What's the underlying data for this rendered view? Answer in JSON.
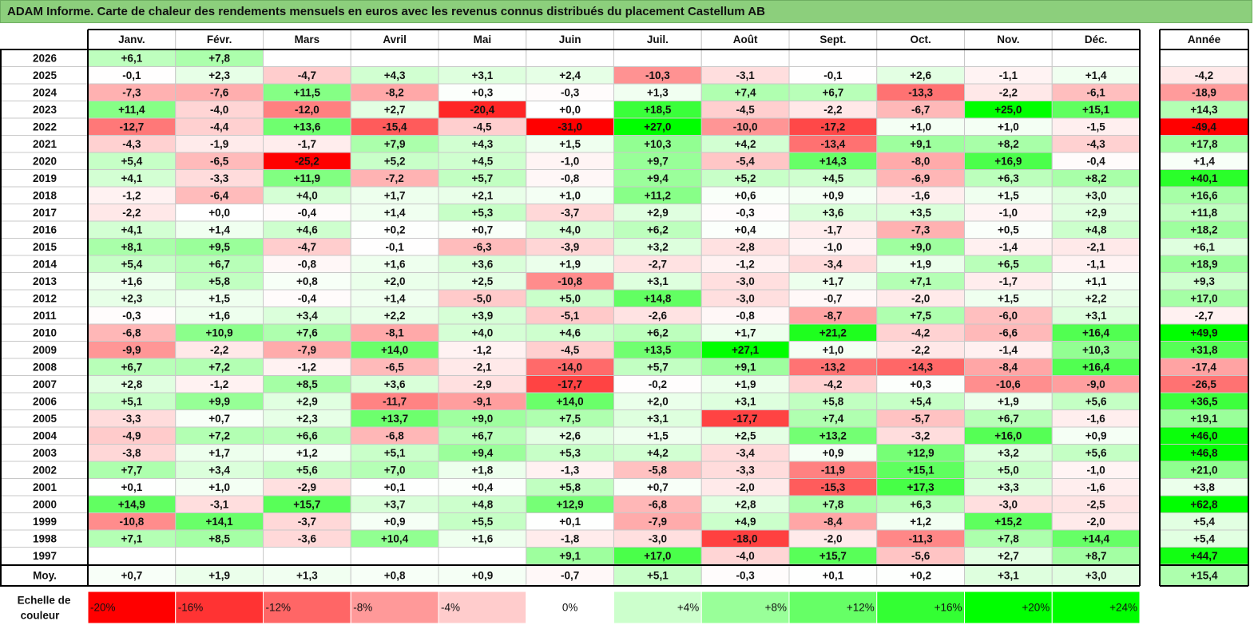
{
  "title": "ADAM Informe. Carte de chaleur des rendements mensuels en euros avec les revenus connus distribués du placement Castellum AB",
  "chart_data": {
    "type": "heatmap",
    "columns": [
      "Janv.",
      "Févr.",
      "Mars",
      "Avril",
      "Mai",
      "Juin",
      "Juil.",
      "Août",
      "Sept.",
      "Oct.",
      "Nov.",
      "Déc."
    ],
    "year_column_label": "Année",
    "average_row_label": "Moy.",
    "rows": [
      {
        "year": "2026",
        "months": [
          "+6,1",
          "+7,8",
          "",
          "",
          "",
          "",
          "",
          "",
          "",
          "",
          "",
          ""
        ],
        "annual": ""
      },
      {
        "year": "2025",
        "months": [
          "-0,1",
          "+2,3",
          "-4,7",
          "+4,3",
          "+3,1",
          "+2,4",
          "-10,3",
          "-3,1",
          "-0,1",
          "+2,6",
          "-1,1",
          "+1,4"
        ],
        "annual": "-4,2"
      },
      {
        "year": "2024",
        "months": [
          "-7,3",
          "-7,6",
          "+11,5",
          "-8,2",
          "+0,3",
          "-0,3",
          "+1,3",
          "+7,4",
          "+6,7",
          "-13,3",
          "-2,2",
          "-6,1"
        ],
        "annual": "-18,9"
      },
      {
        "year": "2023",
        "months": [
          "+11,4",
          "-4,0",
          "-12,0",
          "+2,7",
          "-20,4",
          "+0,0",
          "+18,5",
          "-4,5",
          "-2,2",
          "-6,7",
          "+25,0",
          "+15,1"
        ],
        "annual": "+14,3"
      },
      {
        "year": "2022",
        "months": [
          "-12,7",
          "-4,4",
          "+13,6",
          "-15,4",
          "-4,5",
          "-31,0",
          "+27,0",
          "-10,0",
          "-17,2",
          "+1,0",
          "+1,0",
          "-1,5"
        ],
        "annual": "-49,4"
      },
      {
        "year": "2021",
        "months": [
          "-4,3",
          "-1,9",
          "-1,7",
          "+7,9",
          "+4,3",
          "+1,5",
          "+10,3",
          "+4,2",
          "-13,4",
          "+9,1",
          "+8,2",
          "-4,3"
        ],
        "annual": "+17,8"
      },
      {
        "year": "2020",
        "months": [
          "+5,4",
          "-6,5",
          "-25,2",
          "+5,2",
          "+4,5",
          "-1,0",
          "+9,7",
          "-5,4",
          "+14,3",
          "-8,0",
          "+16,9",
          "-0,4"
        ],
        "annual": "+1,4"
      },
      {
        "year": "2019",
        "months": [
          "+4,1",
          "-3,3",
          "+11,9",
          "-7,2",
          "+5,7",
          "-0,8",
          "+9,4",
          "+5,2",
          "+4,5",
          "-6,9",
          "+6,3",
          "+8,2"
        ],
        "annual": "+40,1"
      },
      {
        "year": "2018",
        "months": [
          "-1,2",
          "-6,4",
          "+4,0",
          "+1,7",
          "+2,1",
          "+1,0",
          "+11,2",
          "+0,6",
          "+0,9",
          "-1,6",
          "+1,5",
          "+3,0"
        ],
        "annual": "+16,6"
      },
      {
        "year": "2017",
        "months": [
          "-2,2",
          "+0,0",
          "-0,4",
          "+1,4",
          "+5,3",
          "-3,7",
          "+2,9",
          "-0,3",
          "+3,6",
          "+3,5",
          "-1,0",
          "+2,9"
        ],
        "annual": "+11,8"
      },
      {
        "year": "2016",
        "months": [
          "+4,1",
          "+1,4",
          "+4,6",
          "+0,2",
          "+0,7",
          "+4,0",
          "+6,2",
          "+0,4",
          "-1,7",
          "-7,3",
          "+0,5",
          "+4,8"
        ],
        "annual": "+18,2"
      },
      {
        "year": "2015",
        "months": [
          "+8,1",
          "+9,5",
          "-4,7",
          "-0,1",
          "-6,3",
          "-3,9",
          "+3,2",
          "-2,8",
          "-1,0",
          "+9,0",
          "-1,4",
          "-2,1"
        ],
        "annual": "+6,1"
      },
      {
        "year": "2014",
        "months": [
          "+5,4",
          "+6,7",
          "-0,8",
          "+1,6",
          "+3,6",
          "+1,9",
          "-2,7",
          "-1,2",
          "-3,4",
          "+1,9",
          "+6,5",
          "-1,1"
        ],
        "annual": "+18,9"
      },
      {
        "year": "2013",
        "months": [
          "+1,6",
          "+5,8",
          "+0,8",
          "+2,0",
          "+2,5",
          "-10,8",
          "+3,1",
          "-3,0",
          "+1,7",
          "+7,1",
          "-1,7",
          "+1,1"
        ],
        "annual": "+9,3"
      },
      {
        "year": "2012",
        "months": [
          "+2,3",
          "+1,5",
          "-0,4",
          "+1,4",
          "-5,0",
          "+5,0",
          "+14,8",
          "-3,0",
          "-0,7",
          "-2,0",
          "+1,5",
          "+2,2"
        ],
        "annual": "+17,0"
      },
      {
        "year": "2011",
        "months": [
          "-0,3",
          "+1,6",
          "+3,4",
          "+2,2",
          "+3,9",
          "-5,1",
          "-2,6",
          "-0,8",
          "-8,7",
          "+7,5",
          "-6,0",
          "+3,1"
        ],
        "annual": "-2,7"
      },
      {
        "year": "2010",
        "months": [
          "-6,8",
          "+10,9",
          "+7,6",
          "-8,1",
          "+4,0",
          "+4,6",
          "+6,2",
          "+1,7",
          "+21,2",
          "-4,2",
          "-6,6",
          "+16,4"
        ],
        "annual": "+49,9"
      },
      {
        "year": "2009",
        "months": [
          "-9,9",
          "-2,2",
          "-7,9",
          "+14,0",
          "-1,2",
          "-4,5",
          "+13,5",
          "+27,1",
          "+1,0",
          "-2,2",
          "-1,4",
          "+10,3"
        ],
        "annual": "+31,8"
      },
      {
        "year": "2008",
        "months": [
          "+6,7",
          "+7,2",
          "-1,2",
          "-6,5",
          "-2,1",
          "-14,0",
          "+5,7",
          "+9,1",
          "-13,2",
          "-14,3",
          "-8,4",
          "+16,4"
        ],
        "annual": "-17,4"
      },
      {
        "year": "2007",
        "months": [
          "+2,8",
          "-1,2",
          "+8,5",
          "+3,6",
          "-2,9",
          "-17,7",
          "-0,2",
          "+1,9",
          "-4,2",
          "+0,3",
          "-10,6",
          "-9,0"
        ],
        "annual": "-26,5"
      },
      {
        "year": "2006",
        "months": [
          "+5,1",
          "+9,9",
          "+2,9",
          "-11,7",
          "-9,1",
          "+14,0",
          "+2,0",
          "+3,1",
          "+5,8",
          "+5,4",
          "+1,9",
          "+5,6"
        ],
        "annual": "+36,5"
      },
      {
        "year": "2005",
        "months": [
          "-3,3",
          "+0,7",
          "+2,3",
          "+13,7",
          "+9,0",
          "+7,5",
          "+3,1",
          "-17,7",
          "+7,4",
          "-5,7",
          "+6,7",
          "-1,6"
        ],
        "annual": "+19,1"
      },
      {
        "year": "2004",
        "months": [
          "-4,9",
          "+7,2",
          "+6,6",
          "-6,8",
          "+6,7",
          "+2,6",
          "+1,5",
          "+2,5",
          "+13,2",
          "-3,2",
          "+16,0",
          "+0,9"
        ],
        "annual": "+46,0"
      },
      {
        "year": "2003",
        "months": [
          "-3,8",
          "+1,7",
          "+1,2",
          "+5,1",
          "+9,4",
          "+5,3",
          "+4,2",
          "-3,4",
          "+0,9",
          "+12,9",
          "+3,2",
          "+5,6"
        ],
        "annual": "+46,8"
      },
      {
        "year": "2002",
        "months": [
          "+7,7",
          "+3,4",
          "+5,6",
          "+7,0",
          "+1,8",
          "-1,3",
          "-5,8",
          "-3,3",
          "-11,9",
          "+15,1",
          "+5,0",
          "-1,0"
        ],
        "annual": "+21,0"
      },
      {
        "year": "2001",
        "months": [
          "+0,1",
          "+1,0",
          "-2,9",
          "+0,1",
          "+0,4",
          "+5,8",
          "+0,7",
          "-2,0",
          "-15,3",
          "+17,3",
          "+3,3",
          "-1,6"
        ],
        "annual": "+3,8"
      },
      {
        "year": "2000",
        "months": [
          "+14,9",
          "-3,1",
          "+15,7",
          "+3,7",
          "+4,8",
          "+12,9",
          "-6,8",
          "+2,8",
          "+7,8",
          "+6,3",
          "-3,0",
          "-2,5"
        ],
        "annual": "+62,8"
      },
      {
        "year": "1999",
        "months": [
          "-10,8",
          "+14,1",
          "-3,7",
          "+0,9",
          "+5,5",
          "+0,1",
          "-7,9",
          "+4,9",
          "-8,4",
          "+1,2",
          "+15,2",
          "-2,0"
        ],
        "annual": "+5,4"
      },
      {
        "year": "1998",
        "months": [
          "+7,1",
          "+8,5",
          "-3,6",
          "+10,4",
          "+1,6",
          "-1,8",
          "-3,0",
          "-18,0",
          "-2,0",
          "-11,3",
          "+7,8",
          "+14,4"
        ],
        "annual": "+5,4"
      },
      {
        "year": "1997",
        "months": [
          "",
          "",
          "",
          "",
          "",
          "+9,1",
          "+17,0",
          "-4,0",
          "+15,7",
          "-5,6",
          "+2,7",
          "+8,7"
        ],
        "annual": "+44,7"
      }
    ],
    "averages": {
      "months": [
        "+0,7",
        "+1,9",
        "+1,3",
        "+0,8",
        "+0,9",
        "-0,7",
        "+5,1",
        "-0,3",
        "+0,1",
        "+0,2",
        "+3,1",
        "+3,0"
      ],
      "annual": "+15,4"
    },
    "color_scale": {
      "label": "Echelle de couleur",
      "stops": [
        "-20%",
        "-16%",
        "-12%",
        "-8%",
        "-4%",
        "0%",
        "+4%",
        "+8%",
        "+12%",
        "+16%",
        "+20%",
        "+24%"
      ],
      "stop_values": [
        -20,
        -16,
        -12,
        -8,
        -4,
        0,
        4,
        8,
        12,
        16,
        20,
        24
      ],
      "neg_color": "#ff0000",
      "pos_color": "#00ff00",
      "mid_color": "#ffffff"
    }
  }
}
